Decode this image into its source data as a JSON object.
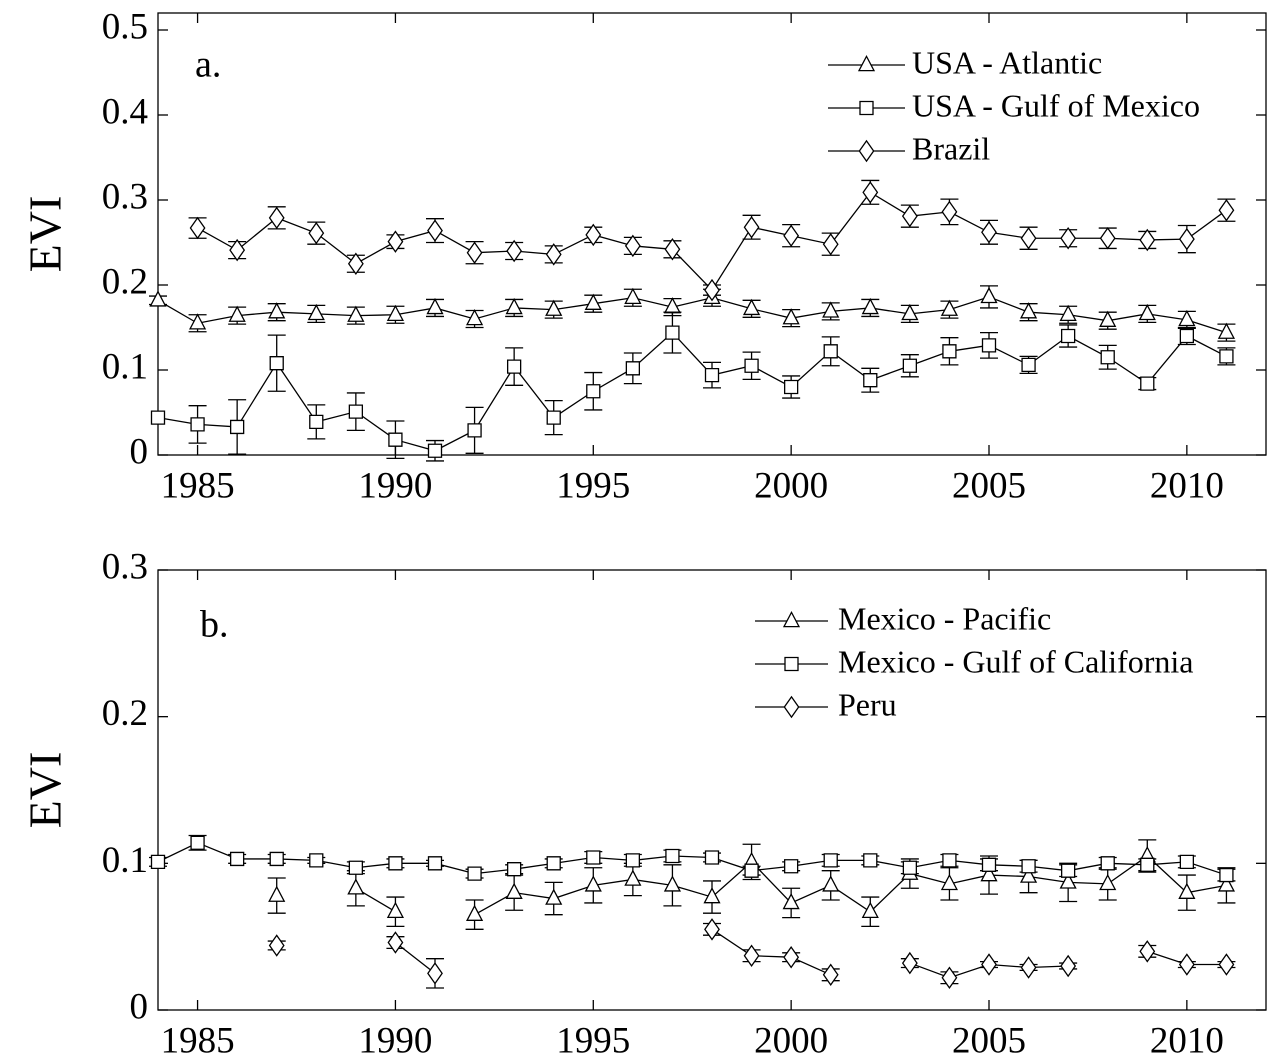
{
  "chart_data": [
    {
      "type": "line",
      "annotation": "a.",
      "ylabel": "EVI",
      "x": [
        1984,
        1985,
        1986,
        1987,
        1988,
        1989,
        1990,
        1991,
        1992,
        1993,
        1994,
        1995,
        1996,
        1997,
        1998,
        1999,
        2000,
        2001,
        2002,
        2003,
        2004,
        2005,
        2006,
        2007,
        2008,
        2009,
        2010,
        2011
      ],
      "xlim": [
        1984,
        2012
      ],
      "ylim": [
        0,
        0.52
      ],
      "xticks": [
        1985,
        1990,
        1995,
        2000,
        2005,
        2010
      ],
      "yticks": [
        0,
        0.1,
        0.2,
        0.3,
        0.4,
        0.5
      ],
      "legend": "upper right",
      "series": [
        {
          "name": "USA - Atlantic",
          "marker": "triangle",
          "color": "#000000",
          "values": [
            0.182,
            0.155,
            0.164,
            0.168,
            0.166,
            0.164,
            0.165,
            0.173,
            0.16,
            0.173,
            0.171,
            0.178,
            0.185,
            0.174,
            0.185,
            0.172,
            0.161,
            0.169,
            0.173,
            0.166,
            0.171,
            0.186,
            0.168,
            0.165,
            0.158,
            0.166,
            0.159,
            0.144
          ],
          "errors": [
            0.005,
            0.01,
            0.01,
            0.01,
            0.01,
            0.01,
            0.01,
            0.01,
            0.01,
            0.01,
            0.01,
            0.01,
            0.01,
            0.01,
            0.01,
            0.01,
            0.01,
            0.01,
            0.01,
            0.01,
            0.01,
            0.013,
            0.01,
            0.01,
            0.01,
            0.01,
            0.01,
            0.01
          ]
        },
        {
          "name": "USA - Gulf of Mexico",
          "marker": "square",
          "color": "#000000",
          "values": [
            0.044,
            0.036,
            0.033,
            0.108,
            0.039,
            0.051,
            0.018,
            0.005,
            0.029,
            0.104,
            0.044,
            0.075,
            0.102,
            0.144,
            0.094,
            0.105,
            0.08,
            0.122,
            0.088,
            0.105,
            0.122,
            0.129,
            0.106,
            0.14,
            0.115,
            0.084,
            0.14,
            0.116
          ],
          "errors": [
            null,
            0.022,
            0.032,
            0.033,
            0.02,
            0.022,
            0.022,
            0.012,
            0.027,
            0.022,
            0.02,
            0.022,
            0.018,
            0.024,
            0.015,
            0.016,
            0.013,
            0.017,
            0.014,
            0.013,
            0.016,
            0.015,
            0.01,
            0.013,
            0.014,
            0.007,
            0.01,
            0.01
          ]
        },
        {
          "name": "Brazil",
          "marker": "diamond",
          "color": "#000000",
          "values": [
            null,
            0.267,
            0.241,
            0.279,
            0.261,
            0.225,
            0.251,
            0.264,
            0.238,
            0.24,
            0.236,
            0.259,
            0.246,
            0.242,
            0.194,
            0.268,
            0.258,
            0.248,
            0.309,
            0.281,
            0.286,
            0.262,
            0.255,
            0.255,
            0.255,
            0.253,
            0.254,
            0.288
          ],
          "errors": [
            null,
            0.012,
            0.01,
            0.013,
            0.013,
            0.01,
            0.008,
            0.014,
            0.013,
            0.01,
            0.01,
            0.009,
            0.01,
            0.01,
            0.006,
            0.014,
            0.013,
            0.013,
            0.014,
            0.013,
            0.015,
            0.014,
            0.013,
            0.01,
            0.012,
            0.01,
            0.016,
            0.013
          ]
        }
      ]
    },
    {
      "type": "line",
      "annotation": "b.",
      "ylabel": "EVI",
      "x": [
        1984,
        1985,
        1986,
        1987,
        1988,
        1989,
        1990,
        1991,
        1992,
        1993,
        1994,
        1995,
        1996,
        1997,
        1998,
        1999,
        2000,
        2001,
        2002,
        2003,
        2004,
        2005,
        2006,
        2007,
        2008,
        2009,
        2010,
        2011
      ],
      "xlim": [
        1984,
        2012
      ],
      "ylim": [
        0,
        0.3
      ],
      "xticks": [
        1985,
        1990,
        1995,
        2000,
        2005,
        2010
      ],
      "yticks": [
        0,
        0.1,
        0.2,
        0.3
      ],
      "legend": "upper right",
      "series": [
        {
          "name": "Mexico - Pacific",
          "marker": "triangle",
          "color": "#000000",
          "values": [
            null,
            null,
            null,
            0.078,
            null,
            0.083,
            0.067,
            null,
            0.065,
            0.08,
            0.076,
            0.085,
            0.089,
            0.085,
            0.077,
            0.101,
            0.073,
            0.085,
            0.067,
            0.093,
            0.086,
            0.092,
            0.091,
            0.087,
            0.086,
            0.105,
            0.08,
            0.085
          ],
          "errors": [
            null,
            null,
            null,
            0.012,
            null,
            0.012,
            0.01,
            null,
            0.01,
            0.012,
            0.011,
            0.012,
            0.011,
            0.014,
            0.011,
            0.012,
            0.01,
            0.01,
            0.01,
            0.01,
            0.011,
            0.013,
            0.011,
            0.013,
            0.011,
            0.011,
            0.012,
            0.012
          ]
        },
        {
          "name": "Mexico - Gulf of California",
          "marker": "square",
          "color": "#000000",
          "values": [
            0.101,
            0.114,
            0.103,
            0.103,
            0.102,
            0.097,
            0.1,
            0.1,
            0.093,
            0.096,
            0.1,
            0.104,
            0.102,
            0.105,
            0.104,
            0.095,
            0.098,
            0.102,
            0.102,
            0.097,
            0.102,
            0.099,
            0.098,
            0.095,
            0.1,
            0.099,
            0.101,
            0.092
          ],
          "errors": [
            0.003,
            0.005,
            0.003,
            0.003,
            0.002,
            0.004,
            0.003,
            0.002,
            0.003,
            0.003,
            0.003,
            0.004,
            0.004,
            0.004,
            0.003,
            0.003,
            0.003,
            0.004,
            0.003,
            0.004,
            0.004,
            0.004,
            0.004,
            0.004,
            0.004,
            0.004,
            0.004,
            0.004
          ]
        },
        {
          "name": "Peru",
          "marker": "diamond",
          "color": "#000000",
          "values": [
            null,
            null,
            null,
            0.044,
            null,
            null,
            0.046,
            0.025,
            null,
            null,
            null,
            null,
            null,
            null,
            0.055,
            0.037,
            0.036,
            0.024,
            null,
            0.032,
            0.022,
            0.031,
            0.029,
            0.03,
            null,
            0.04,
            0.031,
            0.031
          ],
          "errors": [
            null,
            null,
            null,
            0.003,
            null,
            null,
            0.004,
            0.01,
            null,
            null,
            null,
            null,
            null,
            null,
            0.004,
            0.004,
            0.003,
            0.004,
            null,
            0.003,
            0.004,
            0.002,
            0.002,
            0.002,
            null,
            0.004,
            0.002,
            0.002
          ]
        }
      ]
    }
  ]
}
